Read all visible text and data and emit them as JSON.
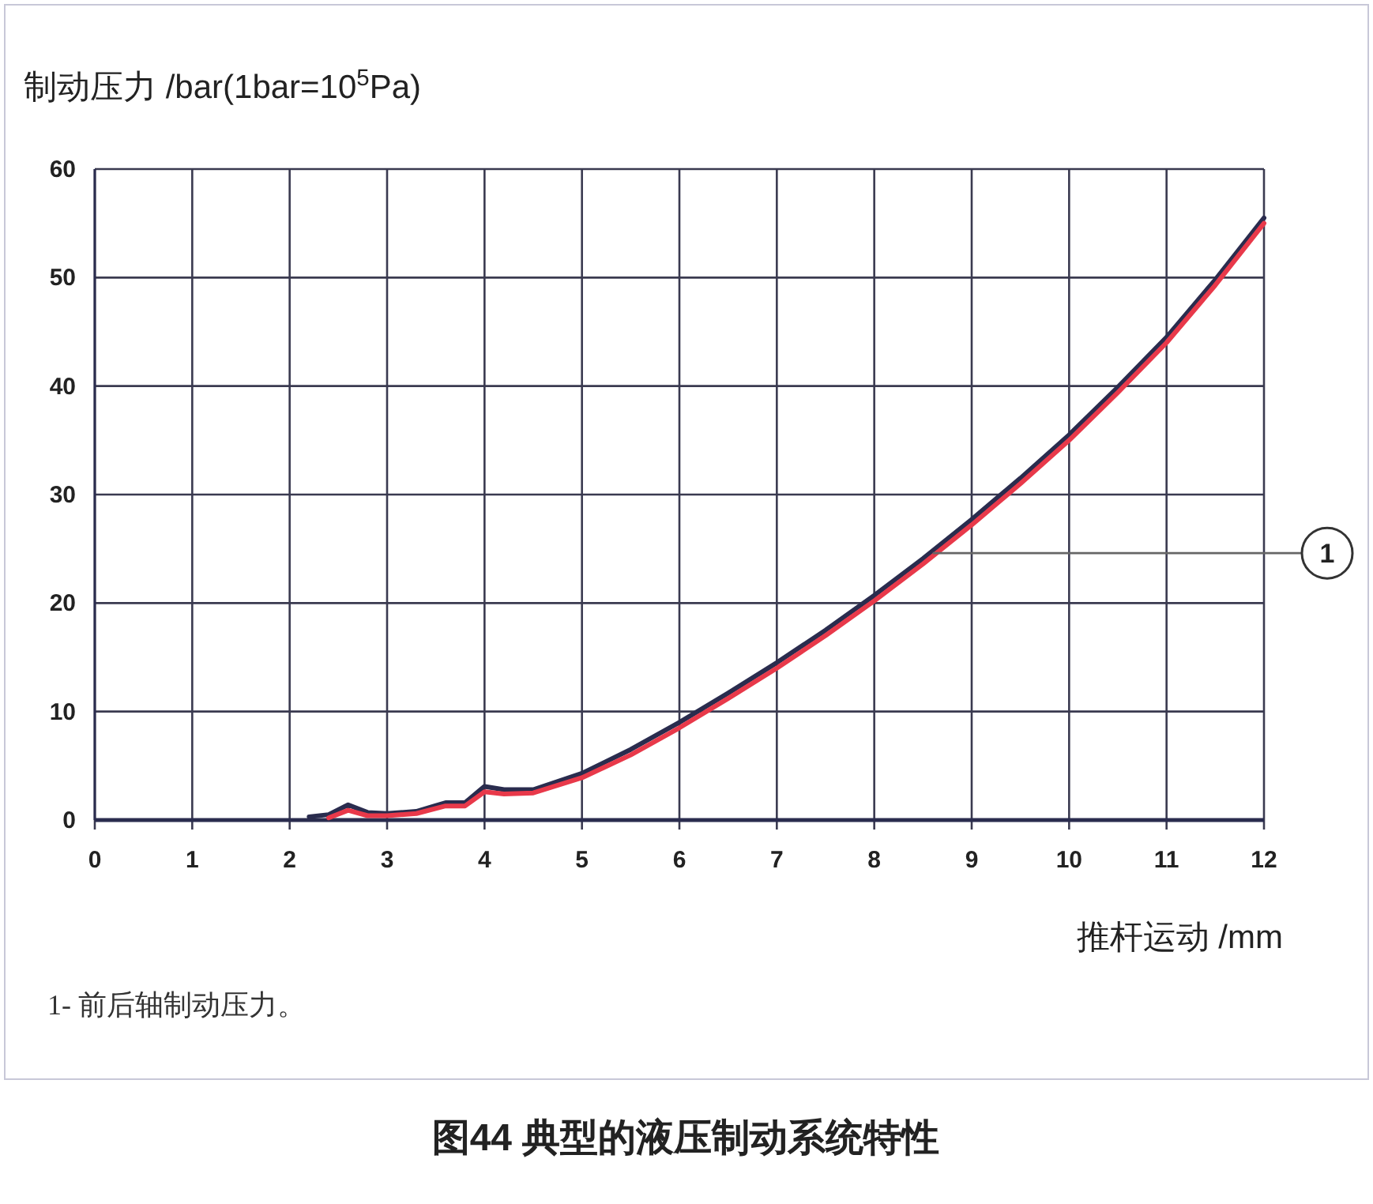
{
  "chart_data": {
    "type": "line",
    "title": "图44 典型的液压制动系统特性",
    "xlabel": "推杆运动 /mm",
    "ylabel": "制动压力 /bar(1bar=10$^{5}$Pa)",
    "x": [
      2.2,
      2.4,
      2.6,
      2.8,
      3.0,
      3.3,
      3.6,
      3.8,
      4.0,
      4.2,
      4.5,
      5,
      5.5,
      6,
      6.5,
      7,
      7.5,
      8,
      8.5,
      9,
      9.5,
      10,
      10.5,
      11,
      11.5,
      12
    ],
    "series": [
      {
        "color": "#2a2c4e",
        "values": [
          0.3,
          0.5,
          1.4,
          0.7,
          0.6,
          0.8,
          1.6,
          1.6,
          3.1,
          2.8,
          2.8,
          4.3,
          6.5,
          9.0,
          11.7,
          14.5,
          17.5,
          20.7,
          24.1,
          27.7,
          31.5,
          35.5,
          39.9,
          44.5,
          49.8,
          55.5
        ]
      },
      {
        "color": "#e8394a",
        "values": [
          null,
          0.2,
          0.9,
          0.4,
          0.4,
          0.6,
          1.3,
          1.3,
          2.6,
          2.4,
          2.5,
          3.9,
          6.0,
          8.5,
          11.2,
          14.0,
          17.0,
          20.2,
          23.6,
          27.2,
          31.0,
          35.0,
          39.4,
          44.0,
          49.3,
          55.0
        ]
      }
    ],
    "xlim": [
      0,
      12
    ],
    "ylim": [
      0,
      60
    ],
    "xticks": [
      0,
      1,
      2,
      3,
      4,
      5,
      6,
      7,
      8,
      9,
      10,
      11,
      12
    ],
    "yticks": [
      0,
      10,
      20,
      30,
      40,
      50,
      60
    ],
    "grid": true,
    "annotations": [
      {
        "text": "1",
        "x": 8.6,
        "y": 24.6
      },
      "1- 前后轴制动压力。"
    ]
  }
}
